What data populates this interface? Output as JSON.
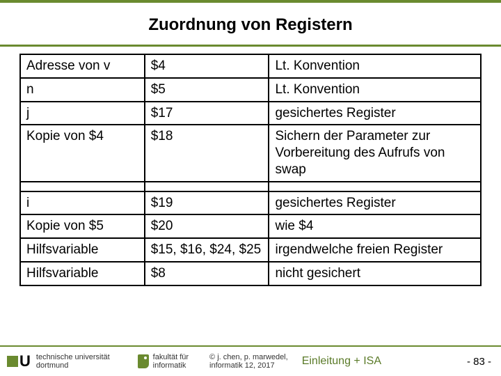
{
  "title": "Zuordnung von Registern",
  "colors": {
    "accent": "#6a8a2f",
    "border": "#000000",
    "background": "#ffffff"
  },
  "table": {
    "column_widths_pct": [
      27,
      27,
      46
    ],
    "group1": [
      {
        "c1": "Adresse von v",
        "c2": "$4",
        "c3": "Lt. Konvention"
      },
      {
        "c1": "n",
        "c2": "$5",
        "c3": "Lt. Konvention"
      },
      {
        "c1": "j",
        "c2": "$17",
        "c3": "gesichertes Register"
      },
      {
        "c1": "Kopie von $4",
        "c2": "$18",
        "c3": "Sichern der Parameter zur Vorbereitung des Aufrufs von swap"
      }
    ],
    "group2": [
      {
        "c1": "i",
        "c2": "$19",
        "c3": "gesichertes Register"
      },
      {
        "c1": "Kopie von $5",
        "c2": "$20",
        "c3": "wie $4"
      },
      {
        "c1": "Hilfsvariable",
        "c2": "$15, $16, $24, $25",
        "c3": "irgendwelche freien Register"
      },
      {
        "c1": "Hilfsvariable",
        "c2": "$8",
        "c3": "nicht gesichert"
      }
    ]
  },
  "footer": {
    "uni_line1": "technische universität",
    "uni_line2": "dortmund",
    "fak_line1": "fakultät für",
    "fak_line2": "informatik",
    "credit_line1": "© j. chen, p. marwedel,",
    "credit_line2": "informatik 12,  2017",
    "section": "Einleitung + ISA",
    "page": "-  83 -"
  }
}
